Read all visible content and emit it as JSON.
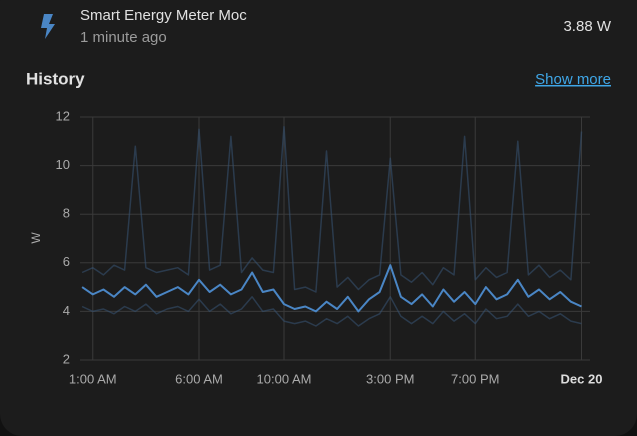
{
  "entity": {
    "name": "Smart Energy Meter Moc",
    "last_changed": "1 minute ago",
    "state": "3.88 W"
  },
  "history": {
    "title": "History",
    "link": "Show more"
  },
  "chart_data": {
    "type": "line",
    "y_label": "W",
    "x": [
      0.5,
      1,
      1.5,
      2,
      2.5,
      3,
      3.5,
      4,
      4.5,
      5,
      5.5,
      6,
      6.5,
      7,
      7.5,
      8,
      8.5,
      9,
      9.5,
      10,
      10.5,
      11,
      11.5,
      12,
      12.5,
      13,
      13.5,
      14,
      14.5,
      15,
      15.5,
      16,
      16.5,
      17,
      17.5,
      18,
      18.5,
      19,
      19.5,
      20,
      20.5,
      21,
      21.5,
      22,
      22.5,
      23,
      23.5,
      24
    ],
    "series": [
      {
        "color": "#4a86c5",
        "values": [
          5.0,
          4.7,
          4.9,
          4.6,
          5.0,
          4.7,
          5.1,
          4.6,
          4.8,
          5.0,
          4.7,
          5.3,
          4.8,
          5.1,
          4.7,
          4.9,
          5.6,
          4.8,
          4.9,
          4.3,
          4.1,
          4.2,
          4.0,
          4.4,
          4.1,
          4.6,
          4.0,
          4.5,
          4.8,
          5.9,
          4.6,
          4.3,
          4.7,
          4.2,
          4.9,
          4.4,
          4.8,
          4.3,
          5.0,
          4.5,
          4.7,
          5.3,
          4.6,
          4.9,
          4.5,
          4.8,
          4.4,
          4.2
        ]
      },
      {
        "color": "#35506e",
        "values": [
          5.6,
          5.8,
          5.5,
          5.9,
          5.7,
          10.8,
          5.8,
          5.6,
          5.7,
          5.8,
          5.5,
          11.5,
          5.7,
          5.9,
          11.2,
          5.6,
          6.2,
          5.7,
          5.6,
          11.6,
          4.9,
          5.0,
          4.8,
          10.6,
          5.0,
          5.4,
          4.9,
          5.3,
          5.5,
          10.3,
          5.5,
          5.2,
          5.6,
          5.1,
          5.8,
          5.5,
          11.2,
          5.3,
          5.8,
          5.4,
          5.6,
          11.0,
          5.5,
          5.9,
          5.4,
          5.7,
          5.3,
          11.4
        ]
      },
      {
        "color": "#35506e",
        "values": [
          4.2,
          4.0,
          4.1,
          3.9,
          4.2,
          4.0,
          4.3,
          3.9,
          4.1,
          4.2,
          4.0,
          4.5,
          4.0,
          4.3,
          3.9,
          4.1,
          4.6,
          4.0,
          4.1,
          3.6,
          3.5,
          3.6,
          3.4,
          3.7,
          3.5,
          3.8,
          3.4,
          3.7,
          3.9,
          4.6,
          3.8,
          3.5,
          3.8,
          3.5,
          4.0,
          3.6,
          3.9,
          3.5,
          4.1,
          3.7,
          3.8,
          4.3,
          3.8,
          4.0,
          3.7,
          3.9,
          3.6,
          3.5
        ]
      }
    ],
    "xlim": [
      0.4,
      24.4
    ],
    "xticks": [
      {
        "value": 1,
        "label": "1:00 AM"
      },
      {
        "value": 6,
        "label": "6:00 AM"
      },
      {
        "value": 10,
        "label": "10:00 AM"
      },
      {
        "value": 15,
        "label": "3:00 PM"
      },
      {
        "value": 19,
        "label": "7:00 PM"
      },
      {
        "value": 24,
        "label": "Dec 20"
      }
    ],
    "ylim": [
      2,
      12
    ],
    "yticks": [
      2,
      4,
      6,
      8,
      10,
      12
    ],
    "grid": true
  }
}
